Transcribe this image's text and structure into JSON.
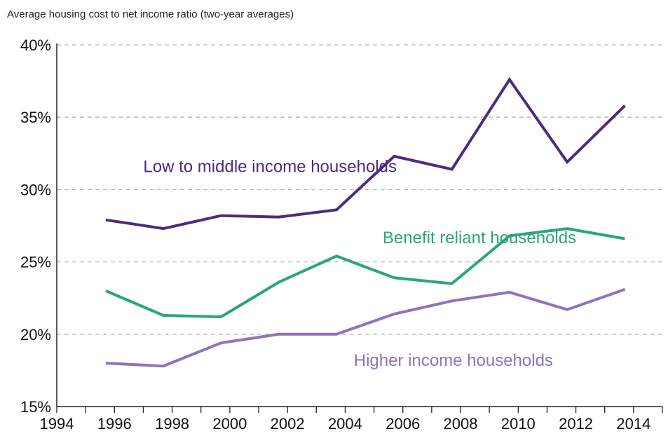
{
  "chart_data": {
    "type": "line",
    "title": "Average housing cost to net income ratio (two-year averages)",
    "xlabel": "",
    "ylabel": "",
    "x_ticks": [
      "1994",
      "1996",
      "1998",
      "2000",
      "2002",
      "2004",
      "2006",
      "2008",
      "2010",
      "2012",
      "2014"
    ],
    "y_ticks": [
      "15%",
      "20%",
      "25%",
      "30%",
      "35%",
      "40%"
    ],
    "xlim": [
      1994,
      2015
    ],
    "ylim": [
      15,
      40
    ],
    "grid": "horizontal dashed",
    "legend": "inline labels",
    "series": [
      {
        "name": "Low to middle income households",
        "color": "#4b2c82",
        "x": [
          1995.7,
          1997.7,
          1999.7,
          2001.7,
          2003.7,
          2005.7,
          2007.7,
          2009.7,
          2011.7,
          2013.7
        ],
        "values": [
          27.9,
          27.3,
          28.2,
          28.1,
          28.6,
          32.3,
          31.4,
          37.6,
          31.9,
          35.8
        ]
      },
      {
        "name": "Benefit reliant households",
        "color": "#2aa57c",
        "x": [
          1995.7,
          1997.7,
          1999.7,
          2001.7,
          2003.7,
          2005.7,
          2007.7,
          2009.7,
          2011.7,
          2013.7
        ],
        "values": [
          23.0,
          21.3,
          21.2,
          23.6,
          25.4,
          23.9,
          23.5,
          26.8,
          27.3,
          26.6
        ]
      },
      {
        "name": "Higher income households",
        "color": "#8c75b8",
        "x": [
          1995.7,
          1997.7,
          1999.7,
          2001.7,
          2003.7,
          2005.7,
          2007.7,
          2009.7,
          2011.7,
          2013.7
        ],
        "values": [
          18.0,
          17.8,
          19.4,
          20.0,
          20.0,
          21.4,
          22.3,
          22.9,
          21.7,
          23.1
        ]
      }
    ]
  }
}
